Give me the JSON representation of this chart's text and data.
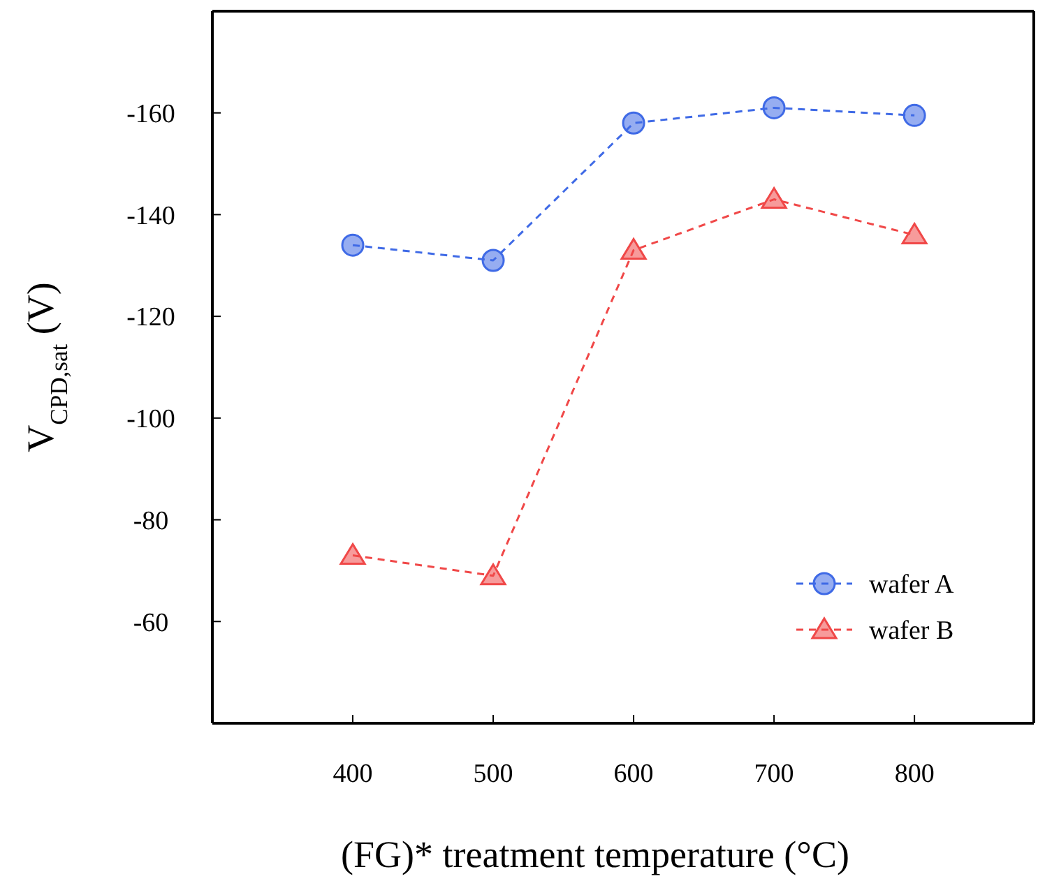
{
  "chart_data": {
    "type": "line",
    "xlabel": "(FG)* treatment temperature  (°C)",
    "ylabel": "V$_{CPD,sat}$  (V)",
    "x": [
      400,
      500,
      600,
      700,
      800
    ],
    "series": [
      {
        "name": "wafer A",
        "color": "#3f6ae6",
        "marker": "circle",
        "values": [
          -134,
          -131,
          -158,
          -161,
          -159.5
        ]
      },
      {
        "name": "wafer B",
        "color": "#f04848",
        "marker": "triangle",
        "values": [
          -73,
          -69,
          -133,
          -143,
          -136
        ]
      }
    ],
    "xlim": [
      300,
      885
    ],
    "xticks": [
      400,
      500,
      600,
      700,
      800
    ],
    "ylim": [
      -40,
      -180
    ],
    "yticks": [
      -160,
      -140,
      -120,
      -100,
      -80,
      -60
    ],
    "line_style": "dashed",
    "legend": "bottom right",
    "grid": false
  }
}
